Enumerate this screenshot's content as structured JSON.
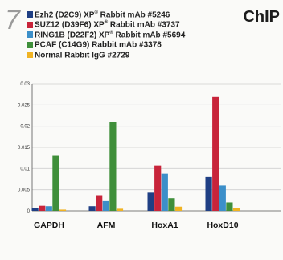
{
  "panel": {
    "number": "7",
    "tag": "ChIP"
  },
  "legend": [
    {
      "pre": "Ezh2 (D2C9) XP",
      "sup": "®",
      "post": " Rabbit mAb #5246",
      "color": "#1f3f84"
    },
    {
      "pre": "SUZ12 (D39F6) XP",
      "sup": "®",
      "post": " Rabbit mAb #3737",
      "color": "#c8243a"
    },
    {
      "pre": "RING1B (D22F2) XP",
      "sup": "®",
      "post": " Rabbit mAb #5694",
      "color": "#3c8fc9"
    },
    {
      "pre": "PCAF (C14G9) Rabbit mAb #3378",
      "sup": "",
      "post": "",
      "color": "#3f8f3a"
    },
    {
      "pre": "Normal Rabbit IgG #2729",
      "sup": "",
      "post": "",
      "color": "#f0b323"
    }
  ],
  "chart_data": {
    "type": "bar",
    "categories": [
      "GAPDH",
      "AFM",
      "HoxA1",
      "HoxD10"
    ],
    "series": [
      {
        "name": "Ezh2 (D2C9) XP® Rabbit mAb #5246",
        "color": "#1f3f84",
        "values": [
          0.0006,
          0.0011,
          0.0043,
          0.008
        ]
      },
      {
        "name": "SUZ12 (D39F6) XP® Rabbit mAb #3737",
        "color": "#c8243a",
        "values": [
          0.0012,
          0.0037,
          0.0107,
          0.027
        ]
      },
      {
        "name": "RING1B (D22F2) XP® Rabbit mAb #5694",
        "color": "#3c8fc9",
        "values": [
          0.0011,
          0.0023,
          0.0088,
          0.006
        ]
      },
      {
        "name": "PCAF (C14G9) Rabbit mAb #3378",
        "color": "#3f8f3a",
        "values": [
          0.013,
          0.021,
          0.003,
          0.002
        ]
      },
      {
        "name": "Normal Rabbit IgG #2729",
        "color": "#f0b323",
        "values": [
          0.0003,
          0.0005,
          0.001,
          0.0006
        ]
      }
    ],
    "ylim": [
      0,
      0.03
    ],
    "yticks": [
      "0",
      "0.005",
      "0.01",
      "0.015",
      "0.02",
      "0.025",
      "0.03"
    ],
    "ytick_values": [
      0,
      0.005,
      0.01,
      0.015,
      0.02,
      0.025,
      0.03
    ],
    "grid": true,
    "title": "",
    "xlabel": "",
    "ylabel": ""
  }
}
